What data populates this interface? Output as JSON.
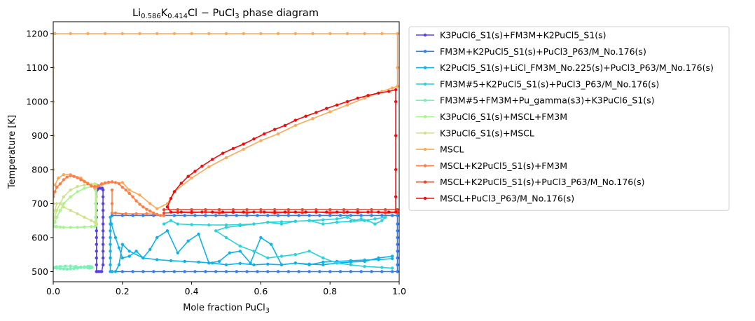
{
  "chart_data": {
    "type": "line",
    "title": "Li0.586K0.414Cl − PuCl3 phase diagram",
    "title_parts": {
      "a": "Li",
      "a_sub": "0.586",
      "b": "K",
      "b_sub": "0.414",
      "c": "Cl − PuCl",
      "c_sub": "3",
      "d": " phase diagram"
    },
    "xlabel": "Mole fraction PuCl3",
    "xlabel_parts": {
      "main": "Mole fraction PuCl",
      "sub": "3"
    },
    "ylabel": "Temperature [K]",
    "xlim": [
      0.0,
      1.0
    ],
    "ylim": [
      470,
      1235
    ],
    "xticks": [
      0.0,
      0.2,
      0.4,
      0.6,
      0.8,
      1.0
    ],
    "xtick_labels": [
      "0.0",
      "0.2",
      "0.4",
      "0.6",
      "0.8",
      "1.0"
    ],
    "yticks": [
      500,
      600,
      700,
      800,
      900,
      1000,
      1100,
      1200
    ],
    "ytick_labels": [
      "500",
      "600",
      "700",
      "800",
      "900",
      "1000",
      "1100",
      "1200"
    ],
    "grid": false,
    "legend_position": "outside-right",
    "series": [
      {
        "name": "K3PuCl6_S1(s)+FM3M+K2PuCl5_S1(s)",
        "color": "#5941e8",
        "x": [
          0.125,
          0.125,
          0.125,
          0.125,
          0.125,
          0.125,
          0.125,
          0.125,
          0.125,
          0.125,
          0.125,
          0.125,
          0.127,
          0.13,
          0.134,
          0.138,
          0.142,
          0.144,
          0.144,
          0.144,
          0.144,
          0.144,
          0.144,
          0.144,
          0.144,
          0.144,
          0.144,
          0.144,
          0.144,
          0.14,
          0.135,
          0.13,
          0.125
        ],
        "y": [
          500,
          520,
          540,
          560,
          580,
          600,
          620,
          640,
          660,
          680,
          700,
          720,
          740,
          745,
          745,
          745,
          745,
          740,
          720,
          700,
          680,
          660,
          640,
          620,
          600,
          580,
          560,
          540,
          520,
          500,
          500,
          500,
          500
        ]
      },
      {
        "name": "FM3M+K2PuCl5_S1(s)+PuCl3_P63/M_No.176(s)",
        "color": "#2f7ef6",
        "x": [
          0.17,
          0.2,
          0.23,
          0.26,
          0.29,
          0.32,
          0.35,
          0.38,
          0.41,
          0.44,
          0.47,
          0.5,
          0.53,
          0.56,
          0.59,
          0.62,
          0.65,
          0.68,
          0.71,
          0.74,
          0.77,
          0.8,
          0.83,
          0.86,
          0.89,
          0.92,
          0.95,
          0.98,
          0.995,
          0.995,
          0.995,
          0.995,
          0.995,
          0.995,
          0.995,
          0.995,
          0.995,
          0.98,
          0.95,
          0.92,
          0.89,
          0.86,
          0.83,
          0.8,
          0.77,
          0.74,
          0.71,
          0.68,
          0.65,
          0.62,
          0.59,
          0.56,
          0.53,
          0.5,
          0.47,
          0.44,
          0.41,
          0.38,
          0.35,
          0.32,
          0.29,
          0.26,
          0.23,
          0.2,
          0.17
        ],
        "y": [
          500,
          500,
          500,
          500,
          500,
          500,
          500,
          500,
          500,
          500,
          500,
          500,
          500,
          500,
          500,
          500,
          500,
          500,
          500,
          500,
          500,
          500,
          500,
          500,
          500,
          500,
          500,
          500,
          500,
          520,
          540,
          560,
          580,
          600,
          620,
          640,
          665,
          665,
          665,
          665,
          665,
          665,
          665,
          665,
          665,
          665,
          665,
          665,
          665,
          665,
          665,
          665,
          665,
          665,
          665,
          665,
          665,
          665,
          665,
          665,
          665,
          665,
          665,
          665,
          665
        ]
      },
      {
        "name": "K2PuCl5_S1(s)+LiCl_FM3M_No.225(s)+PuCl3_P63/M_No.176(s)",
        "color": "#0fb2e8",
        "x": [
          0.165,
          0.165,
          0.165,
          0.165,
          0.165,
          0.165,
          0.165,
          0.165,
          0.165,
          0.168,
          0.18,
          0.19,
          0.2,
          0.22,
          0.24,
          0.26,
          0.28,
          0.3,
          0.33,
          0.36,
          0.39,
          0.42,
          0.45,
          0.48,
          0.51,
          0.54,
          0.57,
          0.6,
          0.63,
          0.66,
          0.7,
          0.74,
          0.78,
          0.82,
          0.86,
          0.9,
          0.94,
          0.98,
          0.98,
          0.94,
          0.9,
          0.86,
          0.82,
          0.78,
          0.74,
          0.7,
          0.66,
          0.62,
          0.58,
          0.54,
          0.5,
          0.46,
          0.42,
          0.38,
          0.34,
          0.3,
          0.26,
          0.22,
          0.2,
          0.19,
          0.18,
          0.17
        ],
        "y": [
          500,
          520,
          540,
          560,
          580,
          600,
          620,
          640,
          660,
          640,
          600,
          570,
          540,
          545,
          560,
          540,
          565,
          600,
          620,
          555,
          590,
          610,
          525,
          530,
          555,
          560,
          525,
          600,
          580,
          520,
          525,
          520,
          528,
          530,
          532,
          534,
          535,
          538,
          545,
          540,
          530,
          528,
          525,
          520,
          522,
          525,
          520,
          522,
          520,
          524,
          520,
          525,
          528,
          530,
          532,
          535,
          540,
          560,
          580,
          520,
          500,
          500
        ]
      },
      {
        "name": "FM3M#5+K2PuCl5_S1(s)+PuCl3_P63/M_No.176(s)",
        "color": "#2ad2d9",
        "x": [
          0.32,
          0.34,
          0.36,
          0.4,
          0.45,
          0.5,
          0.54,
          0.58,
          0.62,
          0.66,
          0.7,
          0.74,
          0.78,
          0.82,
          0.85,
          0.87,
          0.89,
          0.91,
          0.93,
          0.95,
          0.96,
          0.93,
          0.9,
          0.86,
          0.82,
          0.78,
          0.74,
          0.7,
          0.66,
          0.62,
          0.58,
          0.54,
          0.5,
          0.47,
          0.5,
          0.54,
          0.58,
          0.62,
          0.66,
          0.7,
          0.74,
          0.78,
          0.82,
          0.86,
          0.9,
          0.95,
          0.98
        ],
        "y": [
          640,
          650,
          640,
          638,
          637,
          637,
          638,
          640,
          645,
          646,
          648,
          650,
          652,
          655,
          660,
          650,
          655,
          650,
          640,
          650,
          660,
          655,
          650,
          648,
          645,
          640,
          650,
          648,
          640,
          645,
          640,
          635,
          630,
          620,
          600,
          575,
          560,
          540,
          545,
          550,
          560,
          540,
          525,
          520,
          515,
          512,
          510
        ]
      },
      {
        "name": "FM3M#5+FM3M+Pu_gamma(s3)+K3PuCl6_S1(s)",
        "color": "#7af2b5",
        "x": [
          0.0,
          0.005,
          0.01,
          0.02,
          0.035,
          0.05,
          0.065,
          0.08,
          0.09,
          0.1,
          0.105,
          0.11,
          0.112,
          0.11,
          0.105,
          0.1,
          0.09,
          0.08,
          0.07,
          0.06,
          0.05,
          0.04,
          0.03,
          0.02,
          0.01,
          0.005,
          0.0
        ],
        "y": [
          510,
          512,
          514,
          515,
          516,
          516,
          515,
          513,
          512,
          511,
          510,
          511,
          512,
          514,
          515,
          515,
          514,
          512,
          510,
          509,
          508,
          507,
          508,
          509,
          510,
          511,
          511
        ]
      },
      {
        "name": "K3PuCl6_S1(s)+MSCL+FM3M",
        "color": "#a6f58e",
        "x": [
          0.0,
          0.005,
          0.01,
          0.02,
          0.03,
          0.05,
          0.07,
          0.09,
          0.11,
          0.12,
          0.122,
          0.122,
          0.122,
          0.122,
          0.12,
          0.11,
          0.09,
          0.07,
          0.05,
          0.03,
          0.02,
          0.01,
          0.005,
          0.0
        ],
        "y": [
          640,
          645,
          660,
          680,
          700,
          720,
          735,
          745,
          750,
          752,
          740,
          700,
          660,
          635,
          632,
          632,
          631,
          630,
          630,
          630,
          631,
          632,
          632,
          633
        ]
      },
      {
        "name": "K3PuCl6_S1(s)+MSCL",
        "color": "#cfe38c",
        "x": [
          0.0,
          0.005,
          0.01,
          0.02,
          0.03,
          0.05,
          0.07,
          0.09,
          0.11,
          0.12,
          0.125,
          0.125,
          0.125,
          0.12,
          0.11,
          0.09,
          0.07,
          0.05,
          0.03,
          0.02,
          0.01,
          0.005,
          0.0
        ],
        "y": [
          650,
          660,
          680,
          700,
          720,
          740,
          750,
          755,
          757,
          758,
          756,
          720,
          640,
          645,
          650,
          660,
          670,
          680,
          690,
          700,
          700,
          680,
          660
        ]
      },
      {
        "name": "MSCL",
        "color": "#fbaa5a",
        "x": [
          0.0,
          0.0,
          0.0,
          0.0,
          0.0,
          0.0,
          0.005,
          0.05,
          0.1,
          0.15,
          0.2,
          0.25,
          0.3,
          0.35,
          0.4,
          0.45,
          0.5,
          0.55,
          0.6,
          0.65,
          0.7,
          0.75,
          0.8,
          0.85,
          0.9,
          0.95,
          0.995,
          0.995,
          0.995,
          0.98,
          0.95,
          0.9,
          0.85,
          0.8,
          0.75,
          0.7,
          0.65,
          0.6,
          0.55,
          0.5,
          0.45,
          0.4,
          0.35,
          0.33,
          0.3,
          0.28,
          0.25,
          0.22,
          0.2,
          0.16,
          0.12,
          0.1,
          0.08,
          0.05,
          0.03,
          0.015,
          0.005
        ],
        "y": [
          700,
          800,
          900,
          1000,
          1100,
          1200,
          1200,
          1200,
          1200,
          1200,
          1200,
          1200,
          1200,
          1200,
          1200,
          1200,
          1200,
          1200,
          1200,
          1200,
          1200,
          1200,
          1200,
          1200,
          1200,
          1200,
          1200,
          1100,
          1045,
          1040,
          1030,
          1010,
          990,
          970,
          950,
          930,
          905,
          885,
          860,
          835,
          808,
          775,
          735,
          700,
          685,
          700,
          725,
          740,
          762,
          762,
          745,
          760,
          775,
          785,
          785,
          775,
          755
        ]
      },
      {
        "name": "MSCL+K2PuCl5_S1(s)+FM3M",
        "color": "#fe7e46",
        "x": [
          0.0,
          0.005,
          0.01,
          0.02,
          0.03,
          0.04,
          0.05,
          0.06,
          0.07,
          0.08,
          0.09,
          0.1,
          0.11,
          0.12,
          0.13,
          0.14,
          0.15,
          0.16,
          0.17,
          0.18,
          0.19,
          0.2,
          0.21,
          0.22,
          0.23,
          0.24,
          0.25,
          0.26,
          0.27,
          0.28,
          0.29,
          0.3,
          0.31,
          0.32,
          0.3,
          0.27,
          0.24,
          0.21,
          0.18,
          0.17,
          0.17,
          0.17
        ],
        "y": [
          720,
          735,
          748,
          758,
          770,
          778,
          782,
          780,
          776,
          770,
          765,
          758,
          752,
          750,
          752,
          758,
          761,
          763,
          764,
          762,
          758,
          748,
          740,
          730,
          720,
          708,
          698,
          690,
          683,
          678,
          672,
          668,
          665,
          665,
          668,
          670,
          670,
          670,
          672,
          672,
          700,
          740
        ]
      },
      {
        "name": "MSCL+K2PuCl5_S1(s)+PuCl3_P63/M_No.176(s)",
        "color": "#f2452a",
        "x": [
          0.32,
          0.36,
          0.4,
          0.44,
          0.48,
          0.52,
          0.56,
          0.6,
          0.64,
          0.68,
          0.72,
          0.76,
          0.8,
          0.84,
          0.88,
          0.92,
          0.96,
          0.995,
          0.995,
          0.96,
          0.92,
          0.88,
          0.84,
          0.8,
          0.76,
          0.72,
          0.68,
          0.64,
          0.6,
          0.56,
          0.52,
          0.48,
          0.44,
          0.4,
          0.36,
          0.32
        ],
        "y": [
          672,
          674,
          673,
          675,
          672,
          674,
          673,
          675,
          672,
          674,
          673,
          675,
          672,
          674,
          673,
          675,
          672,
          674,
          682,
          682,
          682,
          682,
          682,
          682,
          682,
          682,
          682,
          682,
          682,
          682,
          682,
          682,
          682,
          682,
          682,
          682
        ]
      },
      {
        "name": "MSCL+PuCl3_P63/M_No.176(s)",
        "color": "#f00c0c",
        "x": [
          0.33,
          0.34,
          0.35,
          0.37,
          0.39,
          0.41,
          0.43,
          0.46,
          0.49,
          0.52,
          0.55,
          0.58,
          0.61,
          0.64,
          0.67,
          0.7,
          0.73,
          0.76,
          0.79,
          0.82,
          0.85,
          0.88,
          0.91,
          0.94,
          0.97,
          0.99,
          0.99,
          0.99,
          0.99,
          0.99,
          0.99,
          0.97,
          0.94,
          0.91,
          0.88,
          0.85,
          0.82,
          0.79,
          0.76,
          0.73,
          0.7,
          0.67,
          0.64,
          0.61,
          0.58,
          0.55,
          0.52,
          0.49,
          0.46,
          0.43,
          0.4,
          0.37,
          0.34,
          0.33
        ],
        "y": [
          690,
          715,
          735,
          760,
          780,
          795,
          810,
          830,
          848,
          862,
          875,
          890,
          905,
          918,
          930,
          945,
          957,
          968,
          980,
          990,
          1000,
          1010,
          1018,
          1025,
          1030,
          1035,
          1000,
          900,
          800,
          720,
          675,
          675,
          675,
          675,
          675,
          675,
          675,
          675,
          675,
          675,
          675,
          675,
          675,
          675,
          675,
          675,
          675,
          675,
          675,
          675,
          675,
          675,
          675,
          690
        ]
      }
    ]
  }
}
